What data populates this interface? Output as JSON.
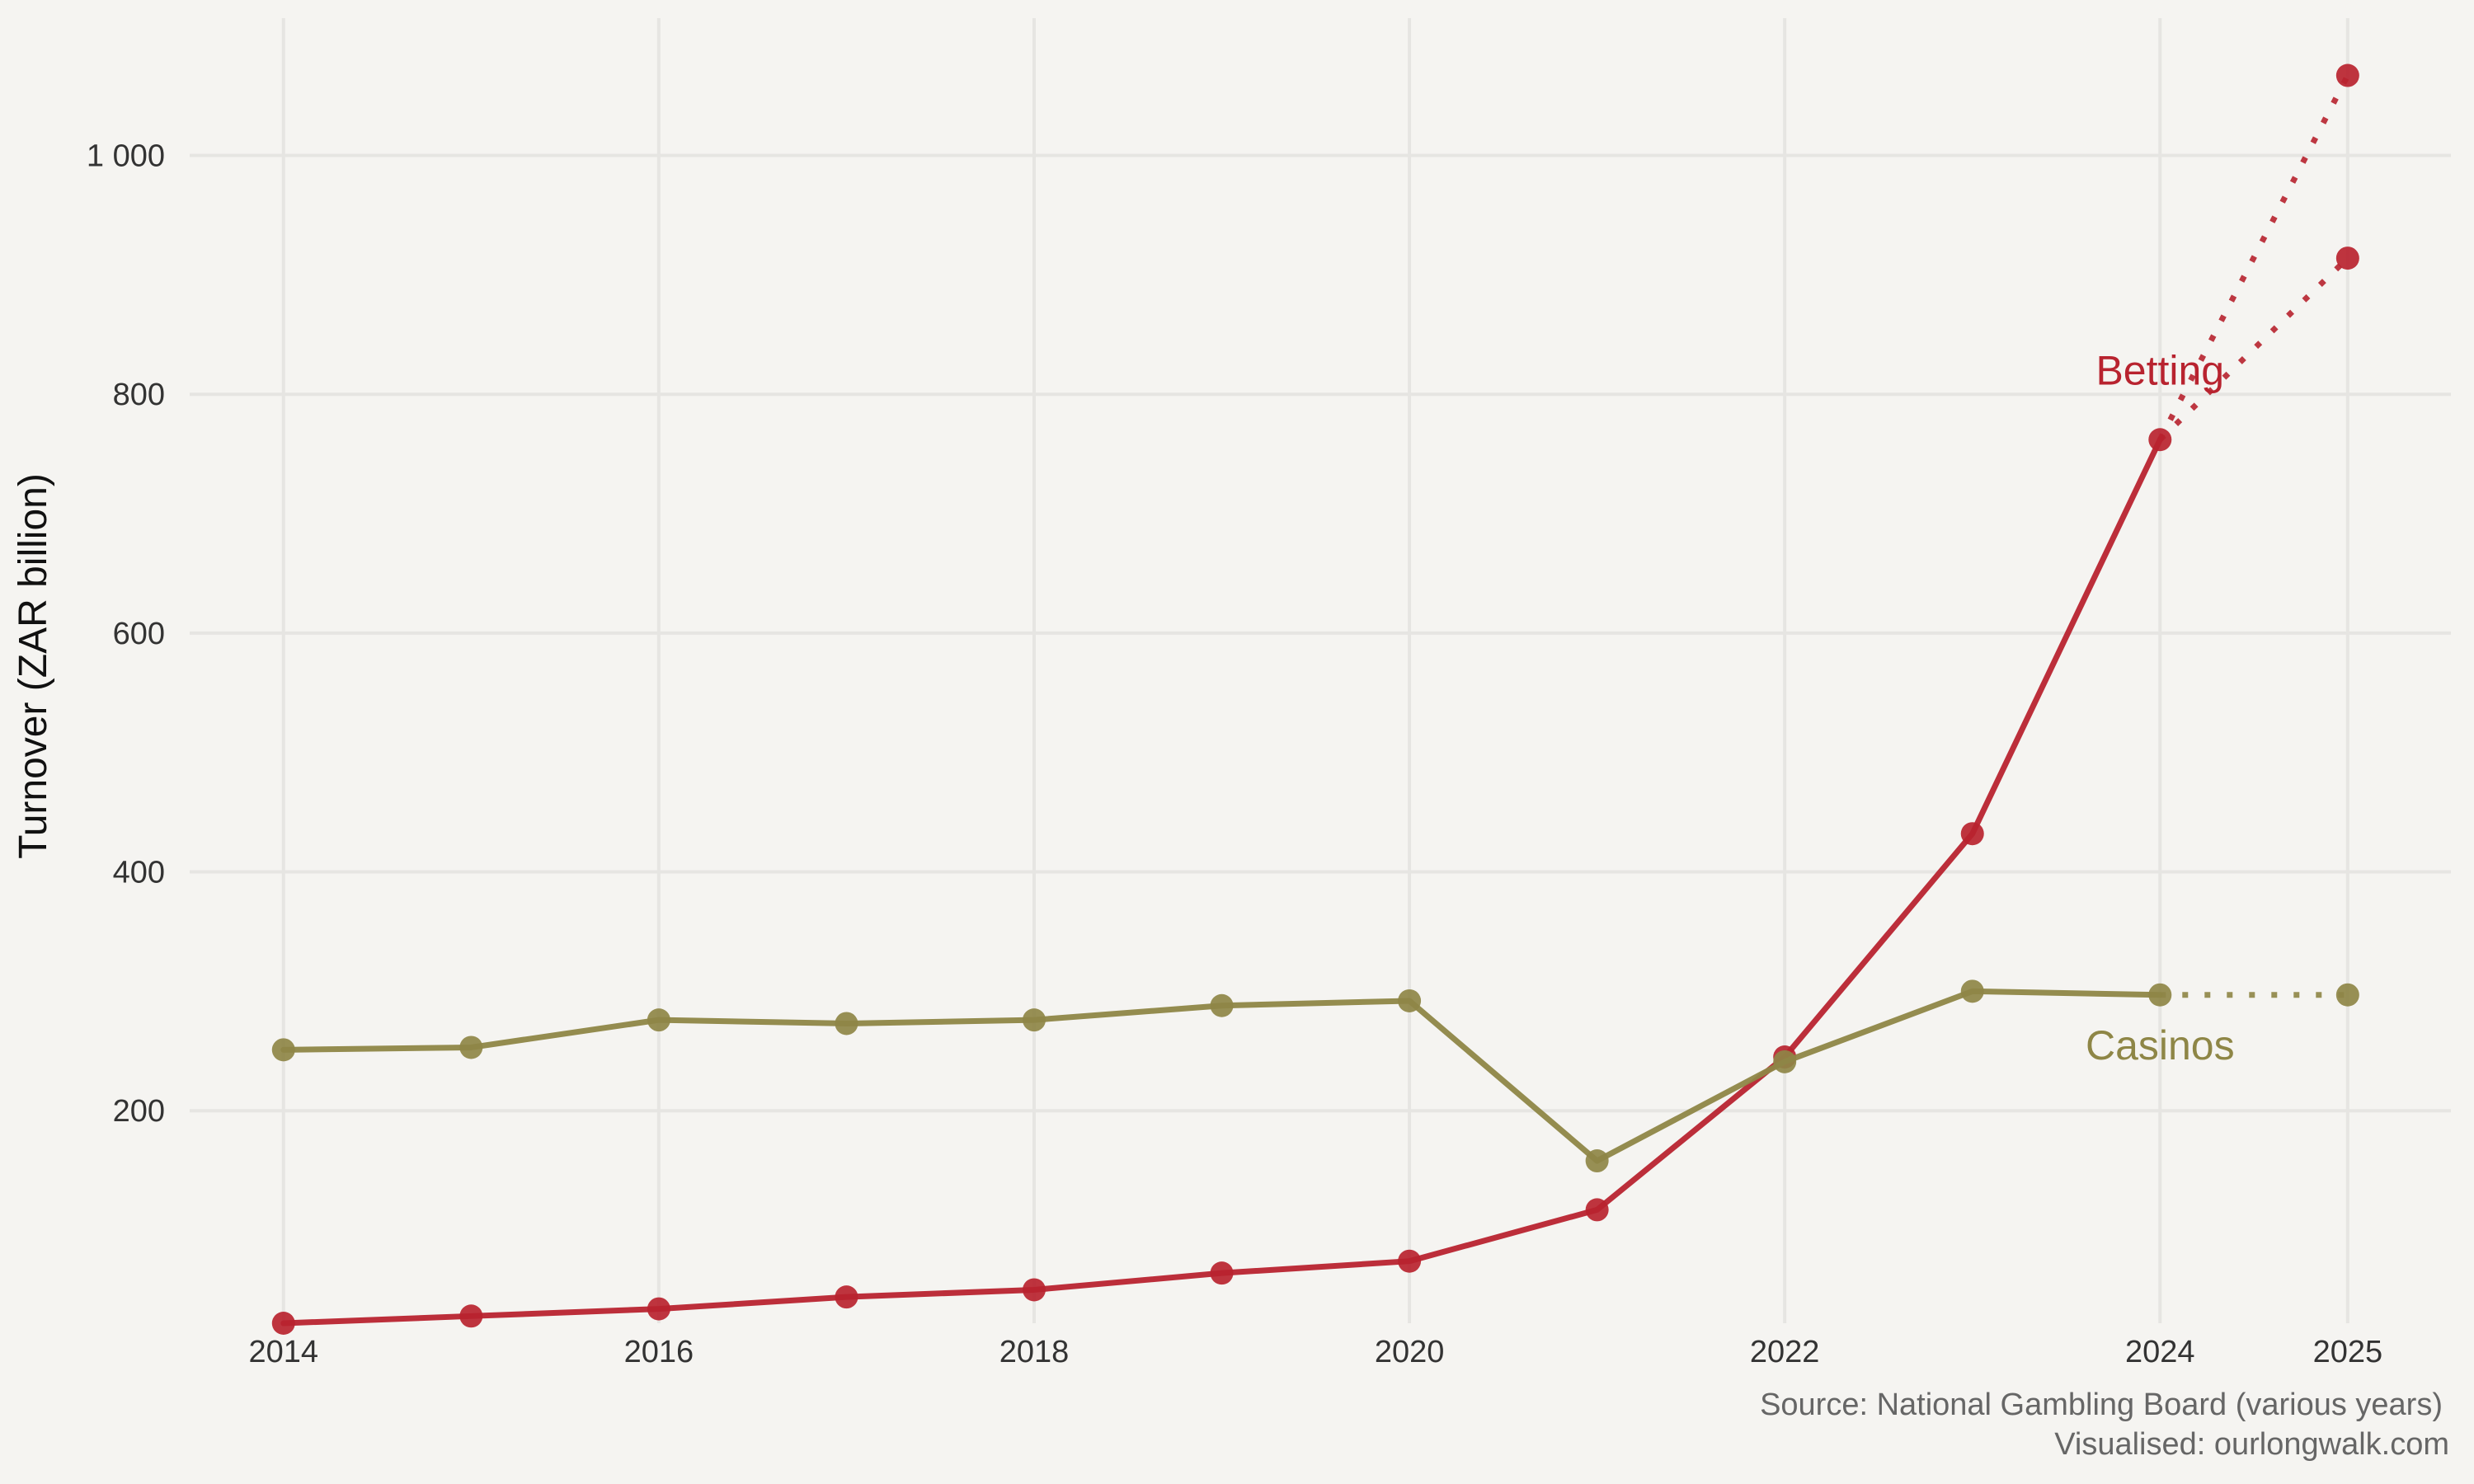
{
  "chart_data": {
    "type": "line",
    "x": [
      2014,
      2015,
      2016,
      2017,
      2018,
      2019,
      2020,
      2021,
      2022,
      2023,
      2024
    ],
    "x_ticks": [
      2014,
      2016,
      2018,
      2020,
      2022,
      2024,
      2025
    ],
    "x_tick_labels": [
      "2014",
      "2016",
      "2018",
      "2020",
      "2022",
      "2024",
      "2025"
    ],
    "xlim": [
      2013.5,
      2025.55
    ],
    "ylim": [
      22,
      1115
    ],
    "y_ticks": [
      200,
      400,
      600,
      800,
      1000
    ],
    "y_tick_labels": [
      "200",
      "400",
      "600",
      "800",
      "1 000"
    ],
    "ylabel": "Turnover (ZAR billion)",
    "xlabel": "",
    "grid": true,
    "legend": "direct labels",
    "series": [
      {
        "name": "Betting",
        "color": "#b8232f",
        "values": [
          22,
          28,
          34,
          44,
          50,
          64,
          74,
          117,
          245,
          432,
          762
        ],
        "projection_x": 2025,
        "projections": [
          1067,
          914
        ],
        "label_x": 2024,
        "label_y": 808
      },
      {
        "name": "Casinos",
        "color": "#8e8646",
        "values": [
          251,
          253,
          276,
          273,
          276,
          288,
          292,
          158,
          241,
          300,
          297
        ],
        "projection_x": 2025,
        "projections": [
          297
        ],
        "label_x": 2024,
        "label_y": 243
      }
    ],
    "caption_lines": [
      "Source: National Gambling Board (various years)",
      "Visualised: ourlongwalk.com"
    ]
  }
}
